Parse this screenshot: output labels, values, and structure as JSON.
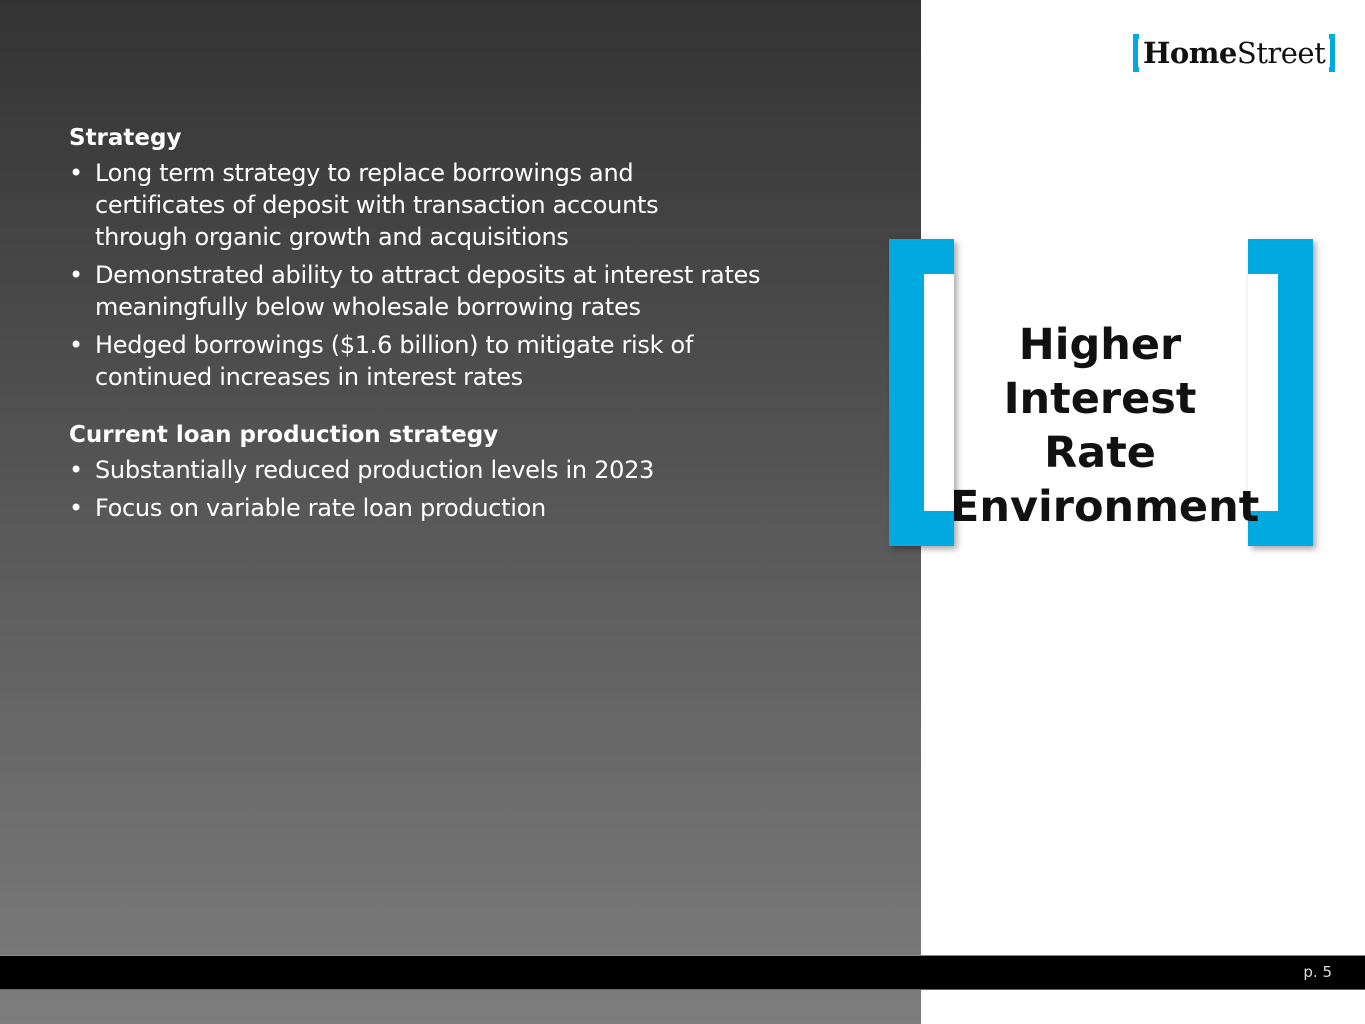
{
  "logo": {
    "text_bold": "Home",
    "text_regular": "Street"
  },
  "sections": [
    {
      "heading": "Strategy",
      "bullets": [
        "Long term strategy to replace borrowings and certificates of deposit with transaction accounts through organic growth and acquisitions",
        "Demonstrated ability to attract deposits at interest rates meaningfully below wholesale borrowing rates",
        "Hedged borrowings ($1.6 billion) to mitigate risk of continued increases in interest rates"
      ]
    },
    {
      "heading": "Current loan production strategy",
      "bullets": [
        "Substantially reduced production levels in 2023",
        "Focus on variable rate loan production"
      ]
    }
  ],
  "callout": {
    "title": "Higher Interest Rate Environment"
  },
  "footer": {
    "page": "p. 5"
  },
  "colors": {
    "accent": "#00a9e0"
  }
}
